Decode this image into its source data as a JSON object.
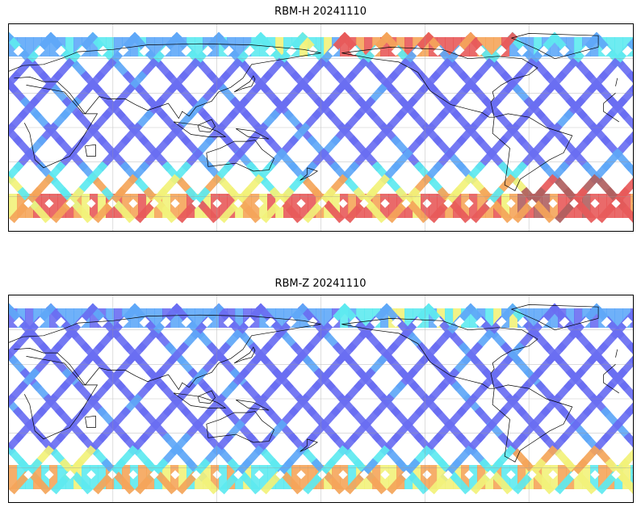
{
  "panels": [
    {
      "title": "RBM-H 20241110",
      "variable": "RBM-H",
      "date": "20241110",
      "high_lat_intensity": "high"
    },
    {
      "title": "RBM-Z 20241110",
      "variable": "RBM-Z",
      "date": "20241110",
      "high_lat_intensity": "low"
    }
  ],
  "map": {
    "projection": "equirectangular",
    "central_longitude": 180,
    "gridlines": true,
    "coastlines": true,
    "colormap": "jet",
    "colors": {
      "track_low": "#6a6ef2",
      "track_mid": "#5fa8f8",
      "cyan": "#5eeaf0",
      "yellow": "#f2f27a",
      "orange": "#f5a55a",
      "red": "#e85a5a",
      "dark_red": "#b06060"
    }
  }
}
